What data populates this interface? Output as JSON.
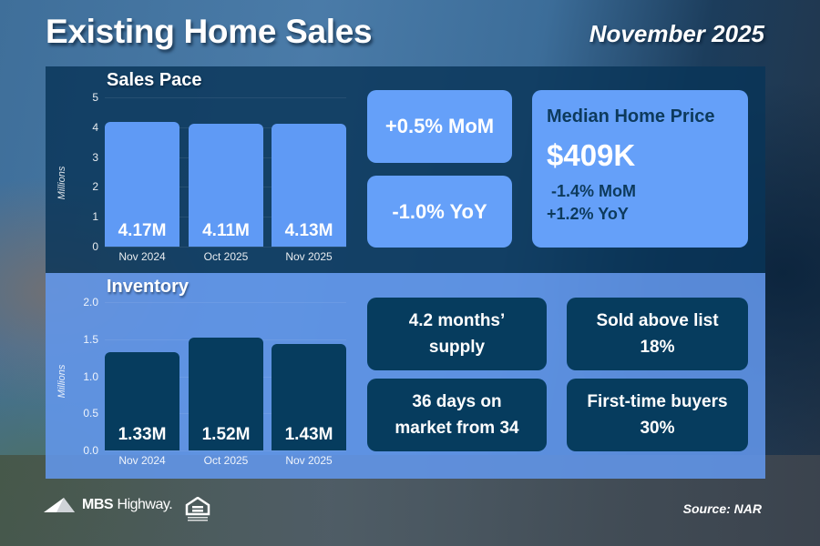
{
  "header": {
    "title": "Existing Home Sales",
    "date": "November 2025"
  },
  "sales_pace": {
    "title": "Sales Pace",
    "axis_label": "Millions",
    "ticks": [
      "0",
      "1",
      "2",
      "3",
      "4",
      "5"
    ],
    "bars": [
      {
        "category": "Nov 2024",
        "value": 4.17,
        "label": "4.17M"
      },
      {
        "category": "Oct 2025",
        "value": 4.11,
        "label": "4.11M"
      },
      {
        "category": "Nov 2025",
        "value": 4.13,
        "label": "4.13M"
      }
    ],
    "cards": {
      "mom": "+0.5% MoM",
      "yoy": "-1.0% YoY"
    },
    "median": {
      "title": "Median Home Price",
      "price": "$409K",
      "mom": " -1.4% MoM",
      "yoy": "+1.2% YoY"
    }
  },
  "inventory": {
    "title": "Inventory",
    "axis_label": "Millions",
    "ticks": [
      "0.0",
      "0.5",
      "1.0",
      "1.5",
      "2.0"
    ],
    "bars": [
      {
        "category": "Nov 2024",
        "value": 1.33,
        "label": "1.33M"
      },
      {
        "category": "Oct 2025",
        "value": 1.52,
        "label": "1.52M"
      },
      {
        "category": "Nov 2025",
        "value": 1.43,
        "label": "1.43M"
      }
    ],
    "cards": {
      "supply_line1": "4.2 months’",
      "supply_line2": "supply",
      "days_line1": "36 days on",
      "days_line2": "market from 34",
      "above_line1": "Sold above list",
      "above_line2": "18%",
      "ftb_line1": "First-time buyers",
      "ftb_line2": "30%"
    }
  },
  "footer": {
    "logo_bold": "MBS",
    "logo_regular": "Highway.",
    "source": "Source: NAR"
  },
  "colors": {
    "light_bar": "#5f9af5",
    "dark_bar": "#063c5e",
    "top_panel": "#083458",
    "bottom_panel": "#6296eb"
  },
  "chart_data": [
    {
      "type": "bar",
      "title": "Sales Pace",
      "categories": [
        "Nov 2024",
        "Oct 2025",
        "Nov 2025"
      ],
      "values": [
        4.17,
        4.11,
        4.13
      ],
      "data_labels": [
        "4.17M",
        "4.11M",
        "4.13M"
      ],
      "xlabel": "",
      "ylabel": "Millions",
      "ylim": [
        0,
        5
      ],
      "yticks": [
        0,
        1,
        2,
        3,
        4,
        5
      ],
      "grid": true,
      "legend": "none"
    },
    {
      "type": "bar",
      "title": "Inventory",
      "categories": [
        "Nov 2024",
        "Oct 2025",
        "Nov 2025"
      ],
      "values": [
        1.33,
        1.52,
        1.43
      ],
      "data_labels": [
        "1.33M",
        "1.52M",
        "1.43M"
      ],
      "xlabel": "",
      "ylabel": "Millions",
      "ylim": [
        0,
        2.0
      ],
      "yticks": [
        0.0,
        0.5,
        1.0,
        1.5,
        2.0
      ],
      "grid": true,
      "legend": "none"
    }
  ]
}
